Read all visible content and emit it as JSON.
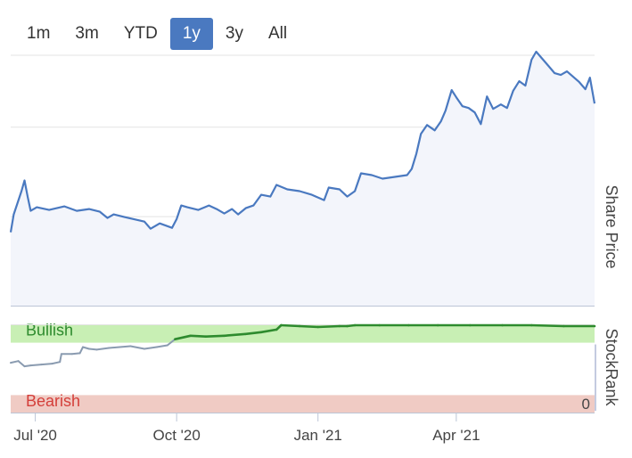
{
  "range_selector": {
    "buttons": [
      "1m",
      "3m",
      "YTD",
      "1y",
      "3y",
      "All"
    ],
    "active": "1y"
  },
  "colors": {
    "price_line": "#4a79c0",
    "price_fill": "#f3f5fb",
    "rank_line_bull": "#2e8b2e",
    "rank_line_neutral": "#8a9bb0",
    "bullish_band": "#c8efb4",
    "bearish_band": "#f0cbc4",
    "bullish_text": "#2e8b2e",
    "bearish_text": "#d43f3a",
    "active_button": "#4a79c0"
  },
  "chart_data": [
    {
      "type": "area",
      "name": "share-price",
      "ylabel": "Share Price",
      "ylim": [
        0,
        28
      ],
      "y_ticks": [
        0,
        10,
        20
      ],
      "grid": true,
      "x_domain": [
        "2020-06-15",
        "2021-06-30"
      ],
      "series": [
        {
          "points": [
            [
              "2020-06-15",
              8.2
            ],
            [
              "2020-06-17",
              10.2
            ],
            [
              "2020-06-22",
              12.8
            ],
            [
              "2020-06-24",
              14.0
            ],
            [
              "2020-06-26",
              12.2
            ],
            [
              "2020-06-28",
              10.6
            ],
            [
              "2020-07-02",
              11.0
            ],
            [
              "2020-07-10",
              10.7
            ],
            [
              "2020-07-20",
              11.1
            ],
            [
              "2020-07-28",
              10.6
            ],
            [
              "2020-08-05",
              10.8
            ],
            [
              "2020-08-12",
              10.5
            ],
            [
              "2020-08-17",
              9.8
            ],
            [
              "2020-08-21",
              10.2
            ],
            [
              "2020-08-28",
              9.9
            ],
            [
              "2020-09-05",
              9.6
            ],
            [
              "2020-09-10",
              9.4
            ],
            [
              "2020-09-14",
              8.6
            ],
            [
              "2020-09-20",
              9.2
            ],
            [
              "2020-09-28",
              8.7
            ],
            [
              "2020-10-01",
              9.7
            ],
            [
              "2020-10-04",
              11.2
            ],
            [
              "2020-10-08",
              11.0
            ],
            [
              "2020-10-15",
              10.7
            ],
            [
              "2020-10-22",
              11.2
            ],
            [
              "2020-10-27",
              10.8
            ],
            [
              "2020-11-01",
              10.3
            ],
            [
              "2020-11-06",
              10.8
            ],
            [
              "2020-11-10",
              10.2
            ],
            [
              "2020-11-15",
              10.9
            ],
            [
              "2020-11-20",
              11.2
            ],
            [
              "2020-11-25",
              12.4
            ],
            [
              "2020-12-01",
              12.2
            ],
            [
              "2020-12-05",
              13.5
            ],
            [
              "2020-12-12",
              13.0
            ],
            [
              "2020-12-20",
              12.8
            ],
            [
              "2020-12-28",
              12.4
            ],
            [
              "2021-01-05",
              11.8
            ],
            [
              "2021-01-08",
              13.2
            ],
            [
              "2021-01-15",
              13.0
            ],
            [
              "2021-01-20",
              12.2
            ],
            [
              "2021-01-25",
              12.8
            ],
            [
              "2021-01-29",
              14.8
            ],
            [
              "2021-02-05",
              14.6
            ],
            [
              "2021-02-12",
              14.2
            ],
            [
              "2021-02-20",
              14.4
            ],
            [
              "2021-02-28",
              14.6
            ],
            [
              "2021-03-03",
              15.3
            ],
            [
              "2021-03-06",
              17.0
            ],
            [
              "2021-03-09",
              19.2
            ],
            [
              "2021-03-13",
              20.2
            ],
            [
              "2021-03-18",
              19.6
            ],
            [
              "2021-03-22",
              20.6
            ],
            [
              "2021-03-25",
              21.8
            ],
            [
              "2021-03-29",
              24.1
            ],
            [
              "2021-04-01",
              23.3
            ],
            [
              "2021-04-05",
              22.3
            ],
            [
              "2021-04-09",
              22.1
            ],
            [
              "2021-04-13",
              21.6
            ],
            [
              "2021-04-17",
              20.3
            ],
            [
              "2021-04-21",
              23.4
            ],
            [
              "2021-04-25",
              22.0
            ],
            [
              "2021-04-30",
              22.5
            ],
            [
              "2021-05-04",
              22.1
            ],
            [
              "2021-05-08",
              24.0
            ],
            [
              "2021-05-12",
              25.1
            ],
            [
              "2021-05-16",
              24.6
            ],
            [
              "2021-05-20",
              27.5
            ],
            [
              "2021-05-23",
              28.4
            ],
            [
              "2021-05-27",
              27.6
            ],
            [
              "2021-05-31",
              26.8
            ],
            [
              "2021-06-04",
              26.0
            ],
            [
              "2021-06-08",
              25.8
            ],
            [
              "2021-06-12",
              26.2
            ],
            [
              "2021-06-16",
              25.6
            ],
            [
              "2021-06-20",
              25.0
            ],
            [
              "2021-06-24",
              24.2
            ],
            [
              "2021-06-27",
              25.5
            ],
            [
              "2021-06-30",
              22.6
            ]
          ]
        }
      ]
    },
    {
      "type": "line",
      "name": "stockrank",
      "ylabel": "StockRank",
      "ylim": [
        0,
        100
      ],
      "y_ticks": [
        0
      ],
      "bands": [
        {
          "label": "Bullish",
          "from": 80,
          "to": 100
        },
        {
          "label": "Bearish",
          "from": 0,
          "to": 20
        }
      ],
      "series": [
        {
          "points": [
            [
              "2020-06-15",
              57
            ],
            [
              "2020-06-20",
              59
            ],
            [
              "2020-06-24",
              53
            ],
            [
              "2020-06-28",
              54
            ],
            [
              "2020-07-05",
              55
            ],
            [
              "2020-07-12",
              56
            ],
            [
              "2020-07-17",
              58
            ],
            [
              "2020-07-18",
              67
            ],
            [
              "2020-07-25",
              67
            ],
            [
              "2020-07-30",
              68
            ],
            [
              "2020-08-01",
              75
            ],
            [
              "2020-08-05",
              73
            ],
            [
              "2020-08-10",
              72
            ],
            [
              "2020-08-18",
              74
            ],
            [
              "2020-08-25",
              75
            ],
            [
              "2020-09-01",
              76
            ],
            [
              "2020-09-10",
              73
            ],
            [
              "2020-09-18",
              75
            ],
            [
              "2020-09-25",
              77
            ],
            [
              "2020-09-30",
              84
            ],
            [
              "2020-10-10",
              88
            ],
            [
              "2020-10-20",
              87
            ],
            [
              "2020-11-01",
              88
            ],
            [
              "2020-11-15",
              90
            ],
            [
              "2020-11-25",
              92
            ],
            [
              "2020-12-05",
              95
            ],
            [
              "2020-12-08",
              100
            ],
            [
              "2020-12-20",
              99
            ],
            [
              "2021-01-01",
              98
            ],
            [
              "2021-01-15",
              99
            ],
            [
              "2021-01-20",
              99
            ],
            [
              "2021-01-25",
              100
            ],
            [
              "2021-02-10",
              100
            ],
            [
              "2021-03-01",
              100
            ],
            [
              "2021-03-20",
              100
            ],
            [
              "2021-04-10",
              100
            ],
            [
              "2021-05-01",
              100
            ],
            [
              "2021-05-20",
              100
            ],
            [
              "2021-06-10",
              99
            ],
            [
              "2021-06-30",
              99
            ]
          ]
        }
      ]
    }
  ],
  "x_axis": {
    "ticks": [
      {
        "label": "Jul '20",
        "date": "2020-07-01"
      },
      {
        "label": "Oct '20",
        "date": "2020-10-01"
      },
      {
        "label": "Jan '21",
        "date": "2021-01-01"
      },
      {
        "label": "Apr '21",
        "date": "2021-04-01"
      }
    ]
  }
}
